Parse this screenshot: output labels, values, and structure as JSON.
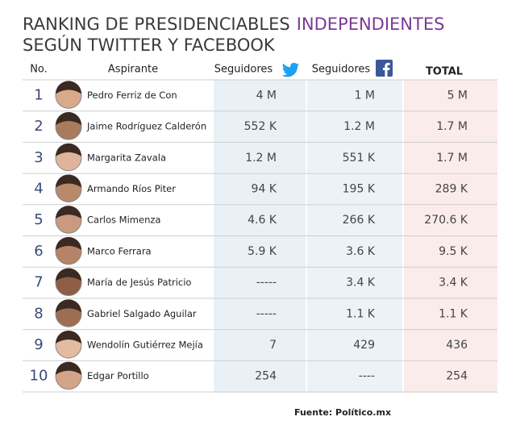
{
  "title": {
    "line1": "RANKING DE PRESIDENCIABLES",
    "highlight": "INDEPENDIENTES",
    "line2": "SEGÚN TWITTER Y FACEBOOK"
  },
  "table": {
    "header": [
      "No.",
      "Aspirante",
      "Seguidores",
      "Seguidores",
      "TOTAL"
    ],
    "rows": [
      [
        "1",
        "Pedro Ferriz de Con",
        "4 M",
        "1 M",
        "5 M"
      ],
      [
        "2",
        "Jaime Rodríguez Calderón",
        "552 K",
        "1.2 M",
        "1.7 M"
      ],
      [
        "3",
        "Margarita Zavala",
        "1.2 M",
        "551 K",
        "1.7 M"
      ],
      [
        "4",
        "Armando Ríos Piter",
        "94 K",
        "195 K",
        "289 K"
      ],
      [
        "5",
        "Carlos Mimenza",
        "4.6 K",
        "266 K",
        "270.6 K"
      ],
      [
        "6",
        "Marco Ferrara",
        "5.9 K",
        "3.6 K",
        "9.5 K"
      ],
      [
        "7",
        "María de Jesús Patricio",
        "-----",
        "3.4 K",
        "3.4 K"
      ],
      [
        "8",
        "Gabriel Salgado Aguilar",
        "-----",
        "1.1 K",
        "1.1 K"
      ],
      [
        "9",
        "Wendolín Gutiérrez Mejía",
        "7",
        "429",
        "436"
      ],
      [
        "10",
        "Edgar Portillo",
        "254",
        "----",
        "254"
      ]
    ]
  },
  "source": "Fuente: Político.mx"
}
